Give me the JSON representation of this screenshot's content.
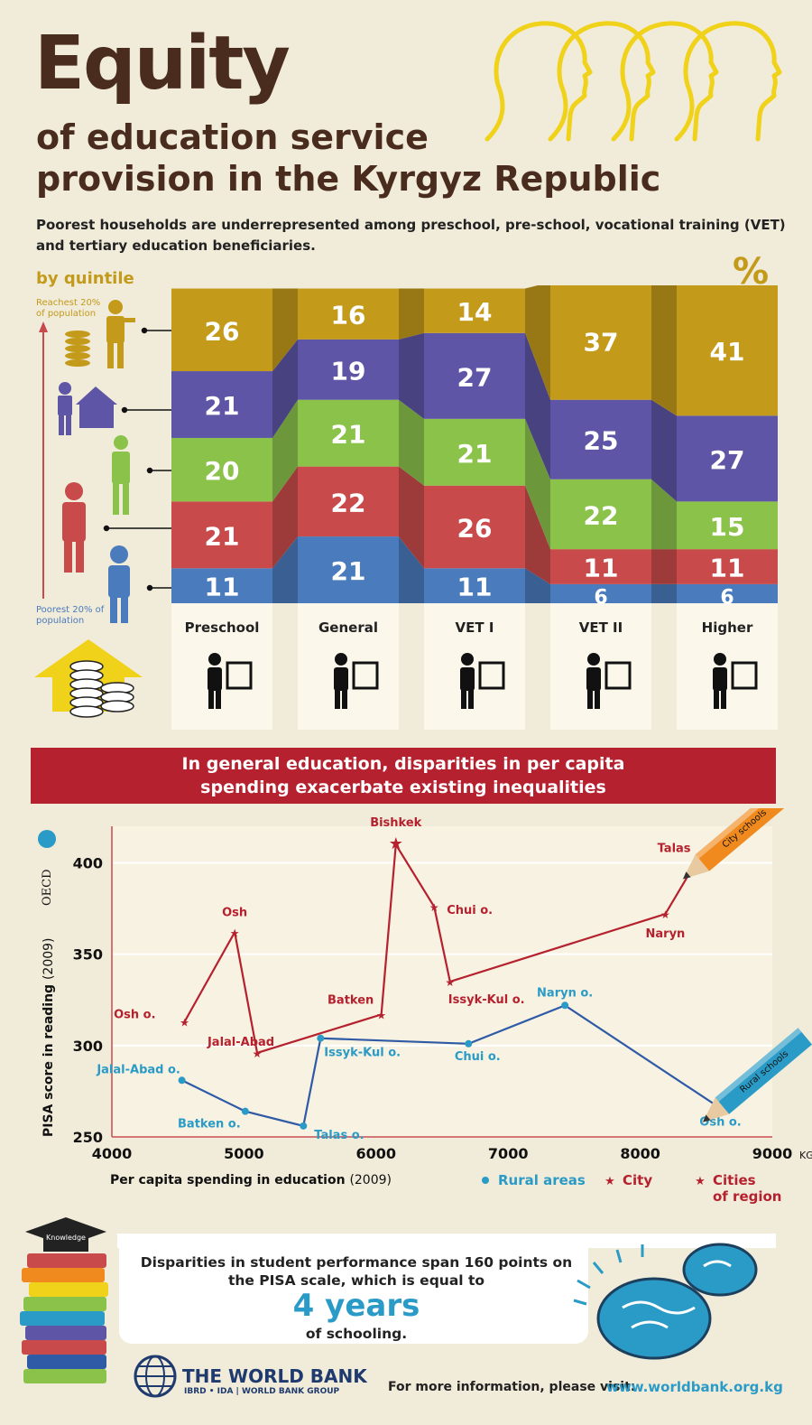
{
  "header": {
    "title": "Equity",
    "subtitle_line1": "of education service",
    "subtitle_line2": "provision in the Kyrgyz Republic",
    "intro": "Poorest households are  underrepresented among preschool, pre-school, vocational training (VET) and tertiary education beneficiaries."
  },
  "colors": {
    "brown": "#4a2c1e",
    "gold": "#c39a1a",
    "purple": "#5e55a6",
    "green": "#8bc24a",
    "red": "#c94a4a",
    "blue": "#4a7bbd",
    "crimson": "#b5212e",
    "teal": "#2a9bc6"
  },
  "chart_data": [
    {
      "type": "bar",
      "stacked": true,
      "label_by_quintile": "by quintile",
      "unit_label": "%",
      "top_label": "Reachest 20% of population",
      "bottom_label": "Poorest 20% of population",
      "categories": [
        "Preschool",
        "General",
        "VET I",
        "VET II",
        "Higher"
      ],
      "series": [
        {
          "values": [
            11,
            21,
            11,
            6,
            6
          ],
          "color": "#4a7bbd"
        },
        {
          "values": [
            21,
            22,
            26,
            11,
            11
          ],
          "color": "#c94a4a"
        },
        {
          "values": [
            20,
            21,
            21,
            22,
            15
          ],
          "color": "#8bc24a"
        },
        {
          "values": [
            21,
            19,
            27,
            25,
            27
          ],
          "color": "#5e55a6"
        },
        {
          "values": [
            26,
            16,
            14,
            37,
            41
          ],
          "color": "#c39a1a"
        }
      ]
    },
    {
      "type": "line",
      "title": "In general education, disparities in per capita spending exacerbate existing inequalities",
      "xlabel": "Per capita spending in education",
      "xlabel_year": "(2009)",
      "x_unit": "KGS",
      "ylabel": "PISA score in reading",
      "ylabel_year": "(2009)",
      "oecd_label": "OECD",
      "xlim": [
        4000,
        9000
      ],
      "ylim": [
        250,
        420
      ],
      "x_ticks": [
        "4000",
        "5000",
        "6000",
        "7000",
        "8000",
        "9000"
      ],
      "y_ticks": [
        "250",
        "300",
        "350",
        "400"
      ],
      "legend": [
        "Rural areas",
        "City",
        "Cities of region"
      ],
      "pencil_city": "City schools",
      "pencil_rural": "Rural schools",
      "series": [
        {
          "name": "City",
          "color": "#b5212e",
          "points": [
            {
              "label": "Osh o.",
              "x": 4550,
              "y": 313
            },
            {
              "label": "Osh",
              "x": 4930,
              "y": 362
            },
            {
              "label": "Jalal-Abad",
              "x": 5100,
              "y": 296
            },
            {
              "label": "Batken",
              "x": 6040,
              "y": 317
            },
            {
              "label": "Bishkek",
              "x": 6150,
              "y": 410
            },
            {
              "label": "Chui o.",
              "x": 6440,
              "y": 376
            },
            {
              "label": "Issyk-Kul o.",
              "x": 6560,
              "y": 335
            },
            {
              "label": "Naryn",
              "x": 8190,
              "y": 372
            },
            {
              "label": "Talas",
              "x": 8420,
              "y": 400
            }
          ]
        },
        {
          "name": "Rural areas",
          "color": "#2f5aa6",
          "points": [
            {
              "label": "Jalal-Abad  o.",
              "x": 4530,
              "y": 281
            },
            {
              "label": "Batken o.",
              "x": 5010,
              "y": 264
            },
            {
              "label": "Talas o.",
              "x": 5450,
              "y": 256
            },
            {
              "label": "Issyk-Kul o.",
              "x": 5580,
              "y": 304
            },
            {
              "label": "Chui o.",
              "x": 6700,
              "y": 301
            },
            {
              "label": "Naryn o.",
              "x": 7430,
              "y": 322
            },
            {
              "label": "Osh o.",
              "x": 8580,
              "y": 267
            }
          ]
        }
      ]
    }
  ],
  "bottom": {
    "line1": "Disparities in student performance span 160 points on the PISA scale, which is equal to",
    "big": "4 years",
    "line3": "of schooling.",
    "book_label": "Knowledge"
  },
  "footer": {
    "org_name": "THE WORLD BANK",
    "org_sub": "IBRD • IDA  |  WORLD BANK GROUP",
    "more_info": "For more information, please visit:",
    "url": "www.worldbank.org.kg"
  }
}
